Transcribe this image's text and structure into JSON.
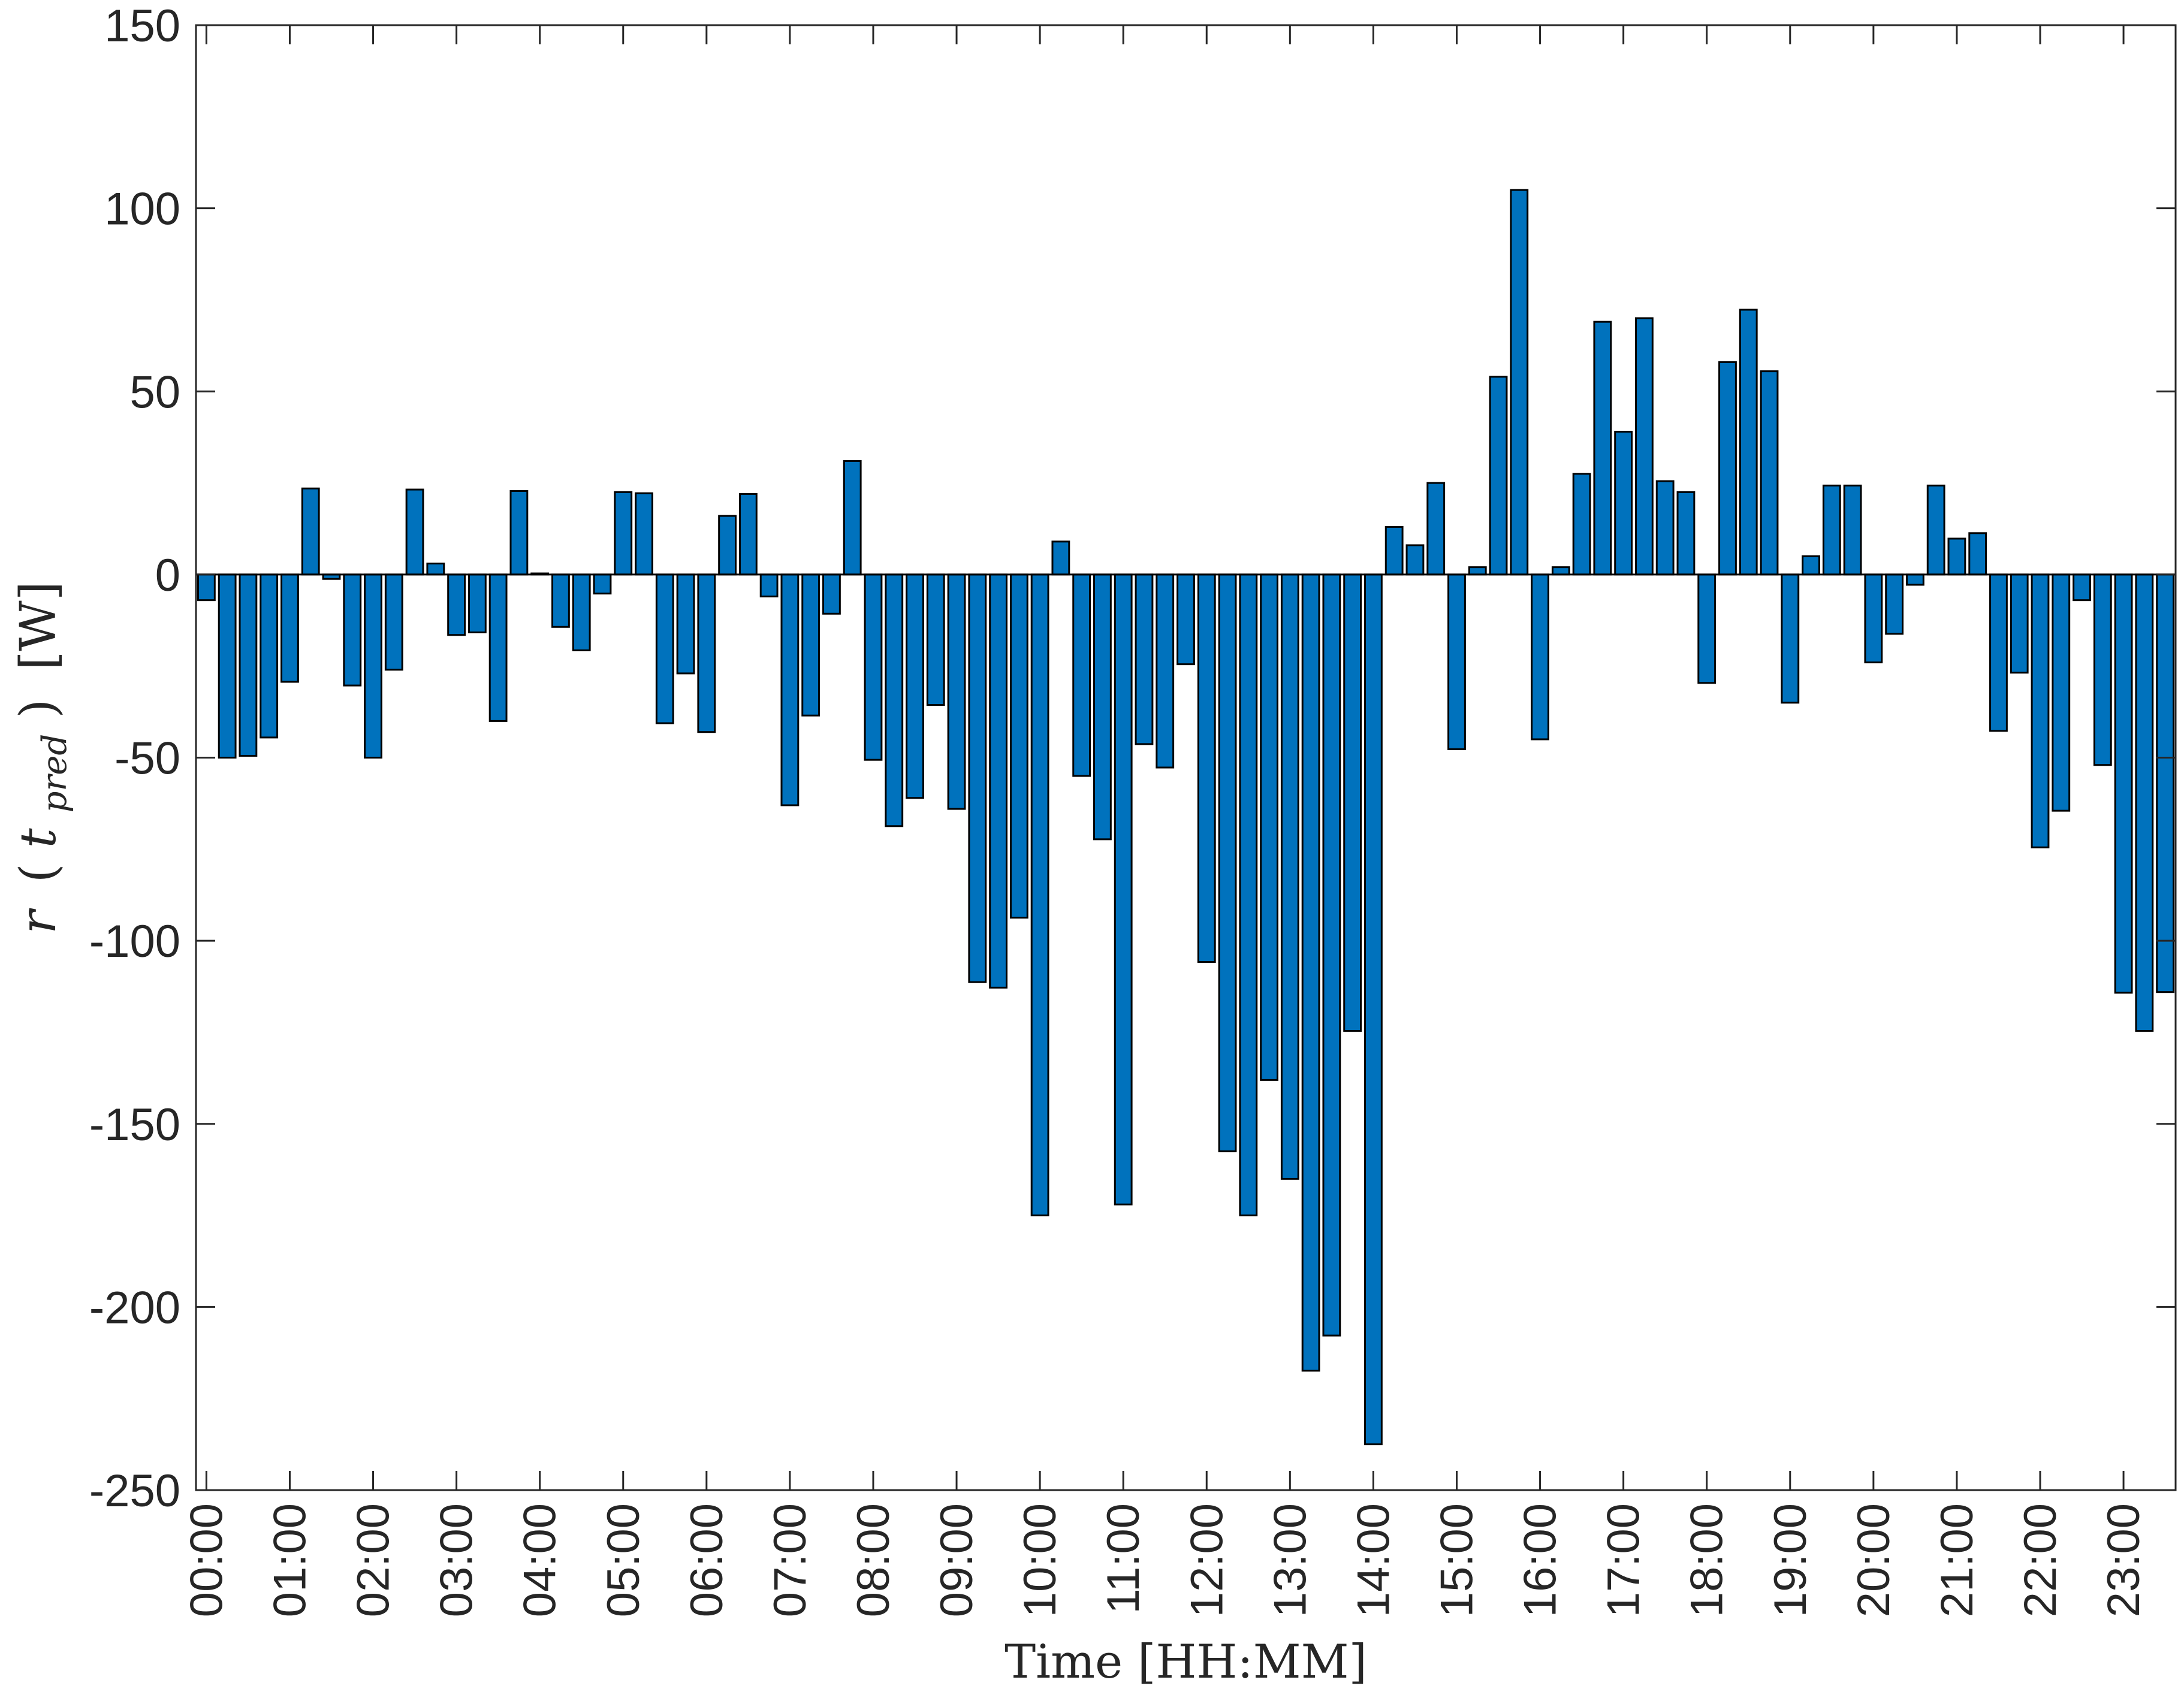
{
  "chart_data": {
    "type": "bar",
    "ylim": [
      -250,
      150
    ],
    "yticks": [
      150,
      100,
      50,
      0,
      -50,
      -100,
      -150,
      -200,
      -250
    ],
    "x_tick_labels": [
      "00:00",
      "01:00",
      "02:00",
      "03:00",
      "04:00",
      "05:00",
      "06:00",
      "07:00",
      "08:00",
      "09:00",
      "10:00",
      "11:00",
      "12:00",
      "13:00",
      "14:00",
      "15:00",
      "16:00",
      "17:00",
      "18:00",
      "19:00",
      "20:00",
      "21:00",
      "22:00",
      "23:00"
    ],
    "xlabel": "Time [HH:MM]",
    "ylabel": {
      "r": "r",
      "open_paren": "(",
      "t": "t",
      "sub": "pred",
      "close_paren": ")",
      "unit": "[W]"
    },
    "grid": false,
    "bar_color": "#0072bd",
    "bar_edge_color": "#000000",
    "values": [
      -7,
      -50,
      -49.5,
      -44.5,
      -29.3,
      23.5,
      -1.2,
      -30.3,
      -50,
      -26,
      23.2,
      3,
      -16.5,
      -15.8,
      -40,
      22.8,
      0.3,
      -14.3,
      -20.7,
      -5.2,
      22.5,
      22.2,
      -40.6,
      -27,
      -43,
      16,
      22,
      -6,
      -63,
      -38.5,
      -10.7,
      31,
      -50.6,
      -68.7,
      -61,
      -35.6,
      -64,
      -111.3,
      -112.8,
      -93.7,
      -175,
      9,
      -55,
      -72.3,
      -172,
      -46.3,
      -52.7,
      -24.5,
      -105.8,
      -157.5,
      -175,
      -138,
      -165,
      -217.4,
      -207.8,
      -124.6,
      -237.5,
      13,
      8,
      25,
      -47.7,
      2,
      54,
      105,
      -45,
      2,
      27.5,
      69,
      39,
      70,
      25.5,
      22.5,
      -29.6,
      58,
      72.3,
      55.5,
      -35,
      5,
      24.3,
      24.3,
      -24,
      -16.2,
      -2.8,
      24.3,
      9.8,
      11.3,
      -42.7,
      -26.8,
      -74.5,
      -64.5,
      -7,
      -52,
      -114.2,
      -124.6,
      -114
    ]
  }
}
